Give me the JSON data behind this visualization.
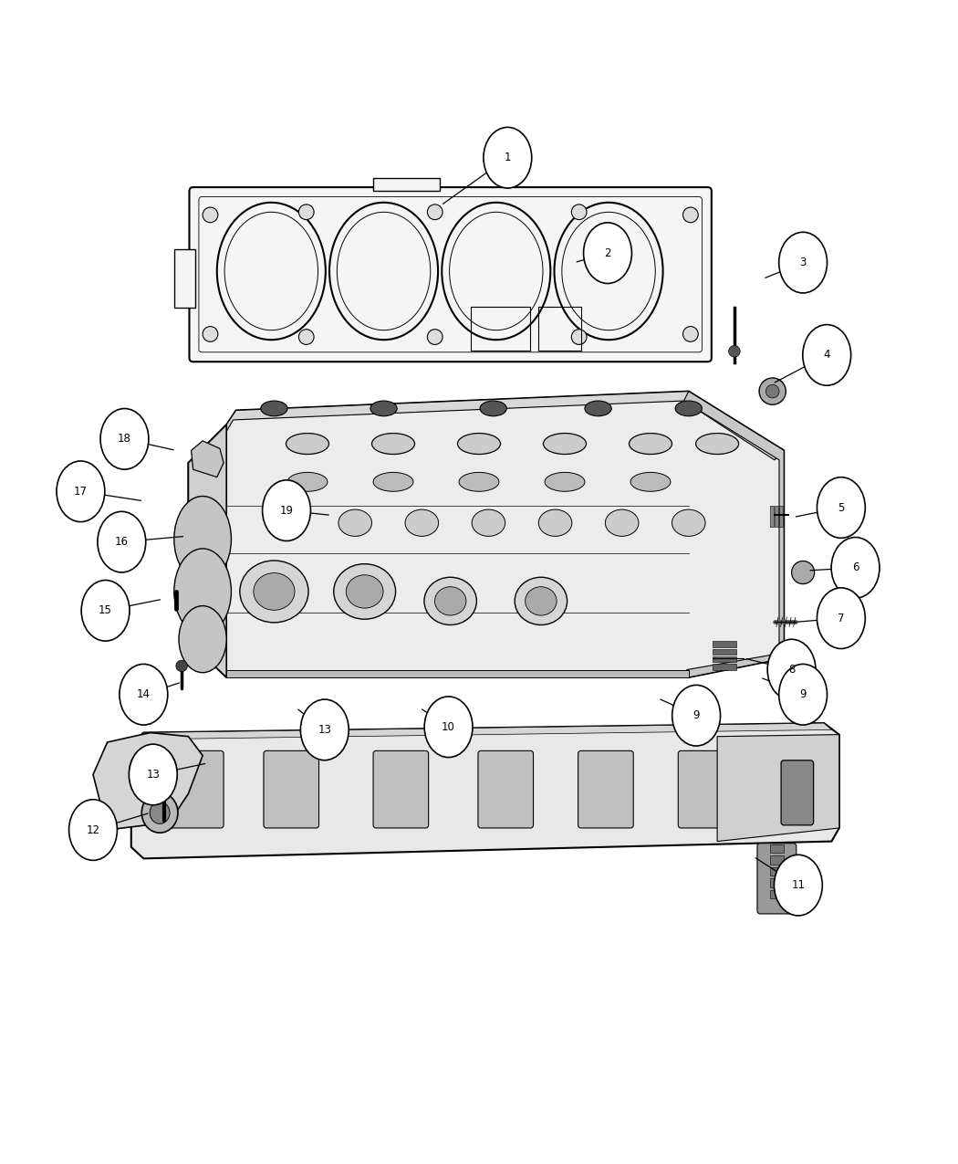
{
  "background_color": "#ffffff",
  "callout_data": [
    [
      1,
      0.53,
      0.945,
      0.46,
      0.895
    ],
    [
      2,
      0.635,
      0.845,
      0.6,
      0.835
    ],
    [
      3,
      0.84,
      0.835,
      0.798,
      0.818
    ],
    [
      4,
      0.865,
      0.738,
      0.808,
      0.708
    ],
    [
      5,
      0.88,
      0.578,
      0.83,
      0.568
    ],
    [
      6,
      0.895,
      0.515,
      0.845,
      0.512
    ],
    [
      7,
      0.88,
      0.462,
      0.832,
      0.458
    ],
    [
      8,
      0.828,
      0.408,
      0.778,
      0.42
    ],
    [
      9,
      0.728,
      0.36,
      0.688,
      0.378
    ],
    [
      10,
      0.468,
      0.348,
      0.438,
      0.368
    ],
    [
      11,
      0.835,
      0.182,
      0.788,
      0.212
    ],
    [
      12,
      0.095,
      0.24,
      0.155,
      0.258
    ],
    [
      13,
      0.158,
      0.298,
      0.215,
      0.31
    ],
    [
      13,
      0.338,
      0.345,
      0.308,
      0.368
    ],
    [
      14,
      0.148,
      0.382,
      0.188,
      0.395
    ],
    [
      15,
      0.108,
      0.47,
      0.168,
      0.482
    ],
    [
      16,
      0.125,
      0.542,
      0.192,
      0.548
    ],
    [
      17,
      0.082,
      0.595,
      0.148,
      0.585
    ],
    [
      18,
      0.128,
      0.65,
      0.182,
      0.638
    ],
    [
      19,
      0.298,
      0.575,
      0.345,
      0.57
    ],
    [
      9,
      0.84,
      0.382,
      0.795,
      0.4
    ]
  ]
}
